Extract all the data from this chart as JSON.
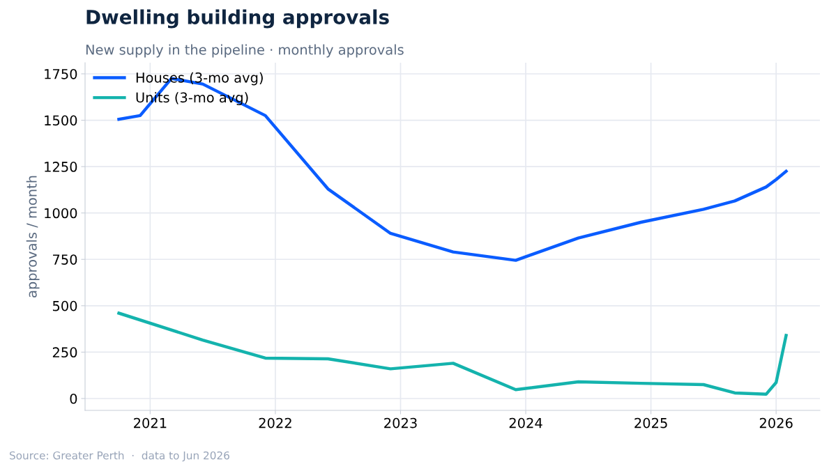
{
  "chart_data": {
    "type": "line",
    "title": "Dwelling building approvals",
    "subtitle": "New supply in the pipeline · monthly approvals",
    "ylabel": "approvals / month",
    "annotations": [
      "Source: Greater Perth  ·  data to Jun 2026"
    ],
    "series": [
      {
        "name": "Houses (3-mo avg)",
        "color": "#0a5cff",
        "x": [
          2020.75,
          2020.92,
          2021.17,
          2021.42,
          2021.92,
          2022.42,
          2022.92,
          2023.42,
          2023.92,
          2024.42,
          2024.92,
          2025.42,
          2025.67,
          2025.92,
          2026.0,
          2026.08
        ],
        "values": [
          1505,
          1525,
          1725,
          1695,
          1525,
          1130,
          890,
          790,
          745,
          865,
          950,
          1020,
          1065,
          1140,
          1180,
          1225
        ]
      },
      {
        "name": "Units (3-mo avg)",
        "color": "#14b3ad",
        "x": [
          2020.75,
          2021.42,
          2021.92,
          2022.42,
          2022.92,
          2023.42,
          2023.92,
          2024.42,
          2024.92,
          2025.42,
          2025.67,
          2025.92,
          2026.0,
          2026.08
        ],
        "values": [
          460,
          315,
          218,
          214,
          160,
          190,
          48,
          90,
          82,
          75,
          30,
          23,
          86,
          340
        ]
      }
    ],
    "xlim": [
      2020.48,
      2026.35
    ],
    "ylim": [
      -64,
      1810
    ],
    "xticks": [
      2021,
      2022,
      2023,
      2024,
      2025,
      2026
    ],
    "yticks": [
      0,
      250,
      500,
      750,
      1000,
      1250,
      1500,
      1750
    ],
    "grid": true,
    "legend": "top left",
    "marker": "none",
    "line_style": "solid"
  }
}
